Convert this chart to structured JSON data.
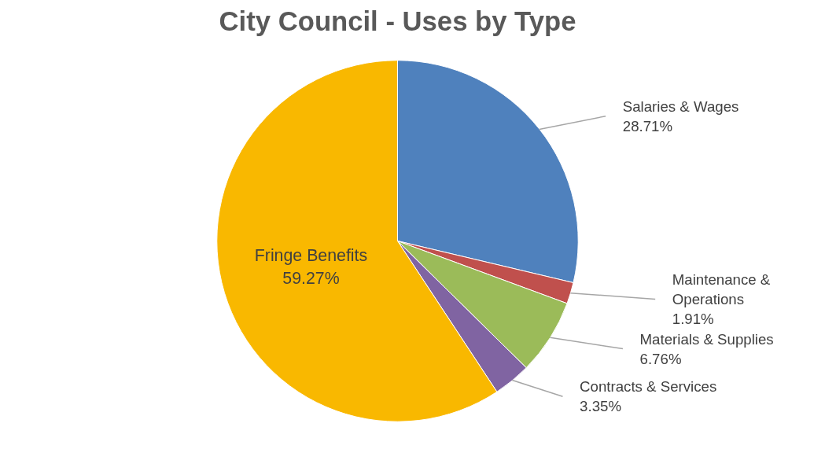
{
  "chart_data": {
    "type": "pie",
    "title": "City Council - Uses by Type",
    "categories": [
      "Salaries & Wages",
      "Maintenance & Operations",
      "Materials & Supplies",
      "Contracts & Services",
      "Fringe Benefits"
    ],
    "values": [
      28.71,
      1.91,
      6.76,
      3.35,
      59.27
    ],
    "colors": [
      "#4f81bd",
      "#c0504d",
      "#9bbb59",
      "#8064a2",
      "#f9b800"
    ],
    "value_labels": [
      "28.71%",
      "1.91%",
      "6.76%",
      "3.35%",
      "59.27%"
    ]
  }
}
